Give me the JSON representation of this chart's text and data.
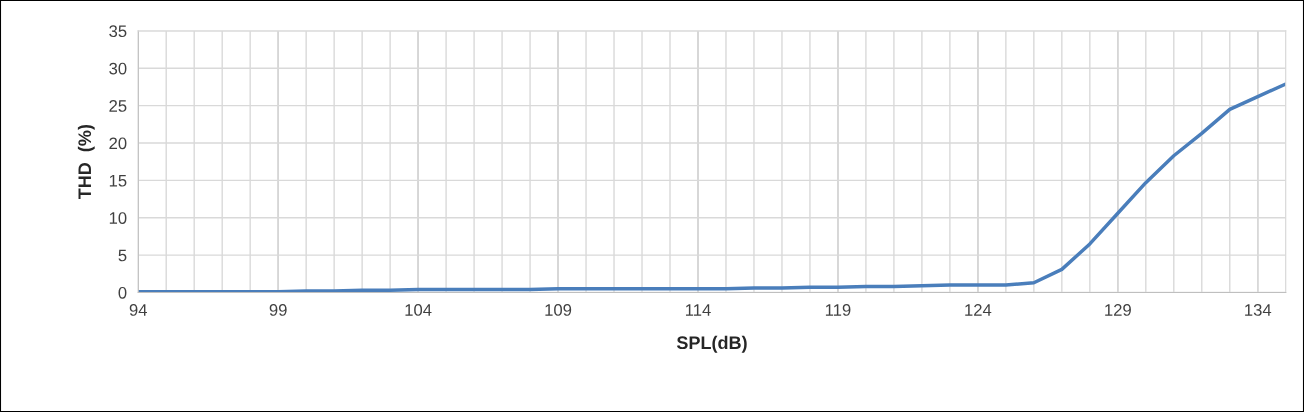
{
  "chart_data": {
    "type": "line",
    "xlabel": "SPL(dB)",
    "ylabel": "THD  (%)",
    "x": [
      94,
      95,
      96,
      97,
      98,
      99,
      100,
      101,
      102,
      103,
      104,
      105,
      106,
      107,
      108,
      109,
      110,
      111,
      112,
      113,
      114,
      115,
      116,
      117,
      118,
      119,
      120,
      121,
      122,
      123,
      124,
      125,
      126,
      127,
      128,
      129,
      130,
      131,
      132,
      133,
      134,
      135
    ],
    "series": [
      {
        "color": "#4a7ebb",
        "values": [
          0.1,
          0.1,
          0.1,
          0.1,
          0.1,
          0.1,
          0.2,
          0.2,
          0.3,
          0.3,
          0.4,
          0.4,
          0.4,
          0.4,
          0.4,
          0.5,
          0.5,
          0.5,
          0.5,
          0.5,
          0.5,
          0.5,
          0.6,
          0.6,
          0.7,
          0.7,
          0.8,
          0.8,
          0.9,
          1.0,
          1.0,
          1.0,
          1.3,
          3.1,
          6.5,
          10.6,
          14.7,
          18.3,
          21.3,
          24.5,
          26.2,
          27.9
        ]
      }
    ],
    "xlim": [
      94,
      135
    ],
    "xticks": [
      94,
      {
        "value": 95,
        "label": null
      },
      {
        "value": 96,
        "label": null
      },
      {
        "value": 97,
        "label": null
      },
      {
        "value": 98,
        "label": null
      },
      99,
      {
        "value": 100,
        "label": null
      },
      {
        "value": 101,
        "label": null
      },
      {
        "value": 102,
        "label": null
      },
      {
        "value": 103,
        "label": null
      },
      104,
      {
        "value": 105,
        "label": null
      },
      {
        "value": 106,
        "label": null
      },
      {
        "value": 107,
        "label": null
      },
      {
        "value": 108,
        "label": null
      },
      109,
      {
        "value": 110,
        "label": null
      },
      {
        "value": 111,
        "label": null
      },
      {
        "value": 112,
        "label": null
      },
      {
        "value": 113,
        "label": null
      },
      114,
      {
        "value": 115,
        "label": null
      },
      {
        "value": 116,
        "label": null
      },
      {
        "value": 117,
        "label": null
      },
      {
        "value": 118,
        "label": null
      },
      119,
      {
        "value": 120,
        "label": null
      },
      {
        "value": 121,
        "label": null
      },
      {
        "value": 122,
        "label": null
      },
      {
        "value": 123,
        "label": null
      },
      124,
      {
        "value": 125,
        "label": null
      },
      {
        "value": 126,
        "label": null
      },
      {
        "value": 127,
        "label": null
      },
      {
        "value": 128,
        "label": null
      },
      129,
      {
        "value": 130,
        "label": null
      },
      {
        "value": 131,
        "label": null
      },
      {
        "value": 132,
        "label": null
      },
      {
        "value": 133,
        "label": null
      },
      134,
      {
        "value": 135,
        "label": null
      }
    ],
    "ylim": [
      0,
      35
    ],
    "yticks": [
      0,
      5,
      10,
      15,
      20,
      25,
      30,
      35
    ],
    "grid": true,
    "marker": "none",
    "line_style": "solid"
  }
}
